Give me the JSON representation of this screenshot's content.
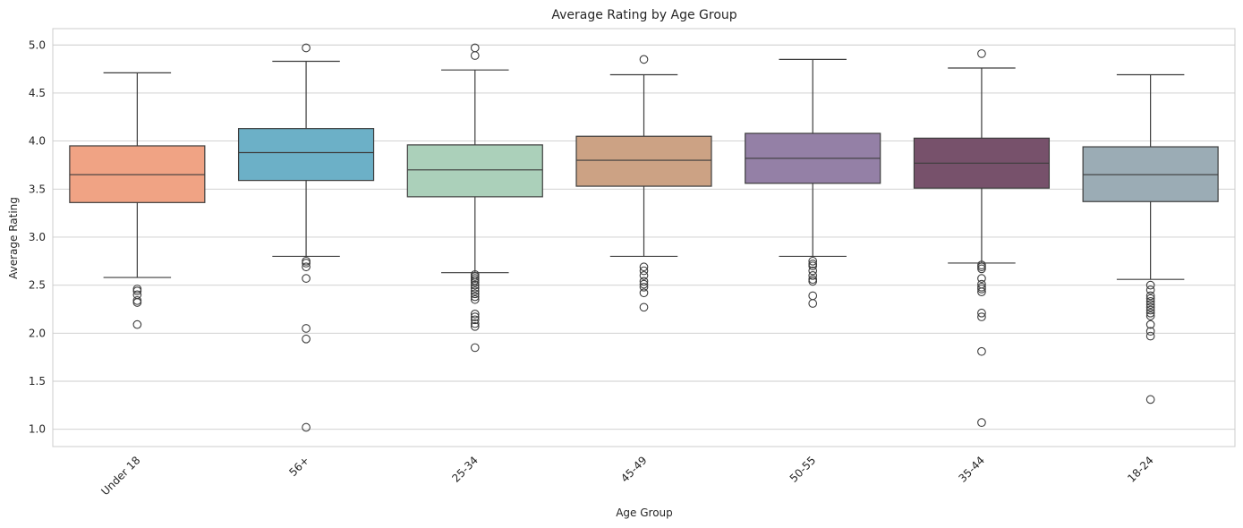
{
  "chart_data": {
    "type": "box",
    "title": "Average Rating by Age Group",
    "xlabel": "Age Group",
    "ylabel": "Average Rating",
    "ylim": [
      0.82,
      5.17
    ],
    "yticks": [
      1.0,
      1.5,
      2.0,
      2.5,
      3.0,
      3.5,
      4.0,
      4.5,
      5.0
    ],
    "ytick_labels": [
      "1.0",
      "1.5",
      "2.0",
      "2.5",
      "3.0",
      "3.5",
      "4.0",
      "4.5",
      "5.0"
    ],
    "grid": true,
    "categories": [
      "Under 18",
      "56+",
      "25-34",
      "45-49",
      "50-55",
      "35-44",
      "18-24"
    ],
    "boxes": [
      {
        "category": "Under 18",
        "color": "#f0a384",
        "whisker_low": 2.58,
        "q1": 3.36,
        "median": 3.65,
        "q3": 3.95,
        "whisker_high": 4.71,
        "outliers": [
          2.46,
          2.44,
          2.4,
          2.34,
          2.32,
          2.09
        ]
      },
      {
        "category": "56+",
        "color": "#6cb0c7",
        "whisker_low": 2.8,
        "q1": 3.59,
        "median": 3.88,
        "q3": 4.13,
        "whisker_high": 4.83,
        "outliers": [
          4.97,
          2.75,
          2.73,
          2.69,
          2.57,
          2.05,
          1.94,
          1.02
        ]
      },
      {
        "category": "25-34",
        "color": "#abd0ba",
        "whisker_low": 2.63,
        "q1": 3.42,
        "median": 3.7,
        "q3": 3.96,
        "whisker_high": 4.74,
        "outliers": [
          4.97,
          4.89,
          2.61,
          2.59,
          2.57,
          2.55,
          2.53,
          2.5,
          2.47,
          2.44,
          2.41,
          2.38,
          2.35,
          2.2,
          2.17,
          2.14,
          2.1,
          2.07,
          1.85
        ]
      },
      {
        "category": "45-49",
        "color": "#cca284",
        "whisker_low": 2.8,
        "q1": 3.53,
        "median": 3.8,
        "q3": 4.05,
        "whisker_high": 4.69,
        "outliers": [
          4.85,
          2.69,
          2.65,
          2.6,
          2.54,
          2.51,
          2.48,
          2.42,
          2.27
        ]
      },
      {
        "category": "50-55",
        "color": "#9480a6",
        "whisker_low": 2.8,
        "q1": 3.56,
        "median": 3.82,
        "q3": 4.08,
        "whisker_high": 4.85,
        "outliers": [
          2.75,
          2.72,
          2.7,
          2.65,
          2.6,
          2.56,
          2.54,
          2.39,
          2.31
        ]
      },
      {
        "category": "35-44",
        "color": "#77516b",
        "whisker_low": 2.73,
        "q1": 3.51,
        "median": 3.77,
        "q3": 4.03,
        "whisker_high": 4.76,
        "outliers": [
          4.91,
          2.71,
          2.69,
          2.67,
          2.57,
          2.51,
          2.48,
          2.46,
          2.43,
          2.21,
          2.17,
          1.81,
          1.07
        ]
      },
      {
        "category": "18-24",
        "color": "#9bacb5",
        "whisker_low": 2.56,
        "q1": 3.37,
        "median": 3.65,
        "q3": 3.94,
        "whisker_high": 4.69,
        "outliers": [
          2.5,
          2.45,
          2.39,
          2.36,
          2.33,
          2.3,
          2.27,
          2.24,
          2.21,
          2.18,
          2.09,
          2.02,
          1.97,
          1.31
        ]
      }
    ]
  }
}
